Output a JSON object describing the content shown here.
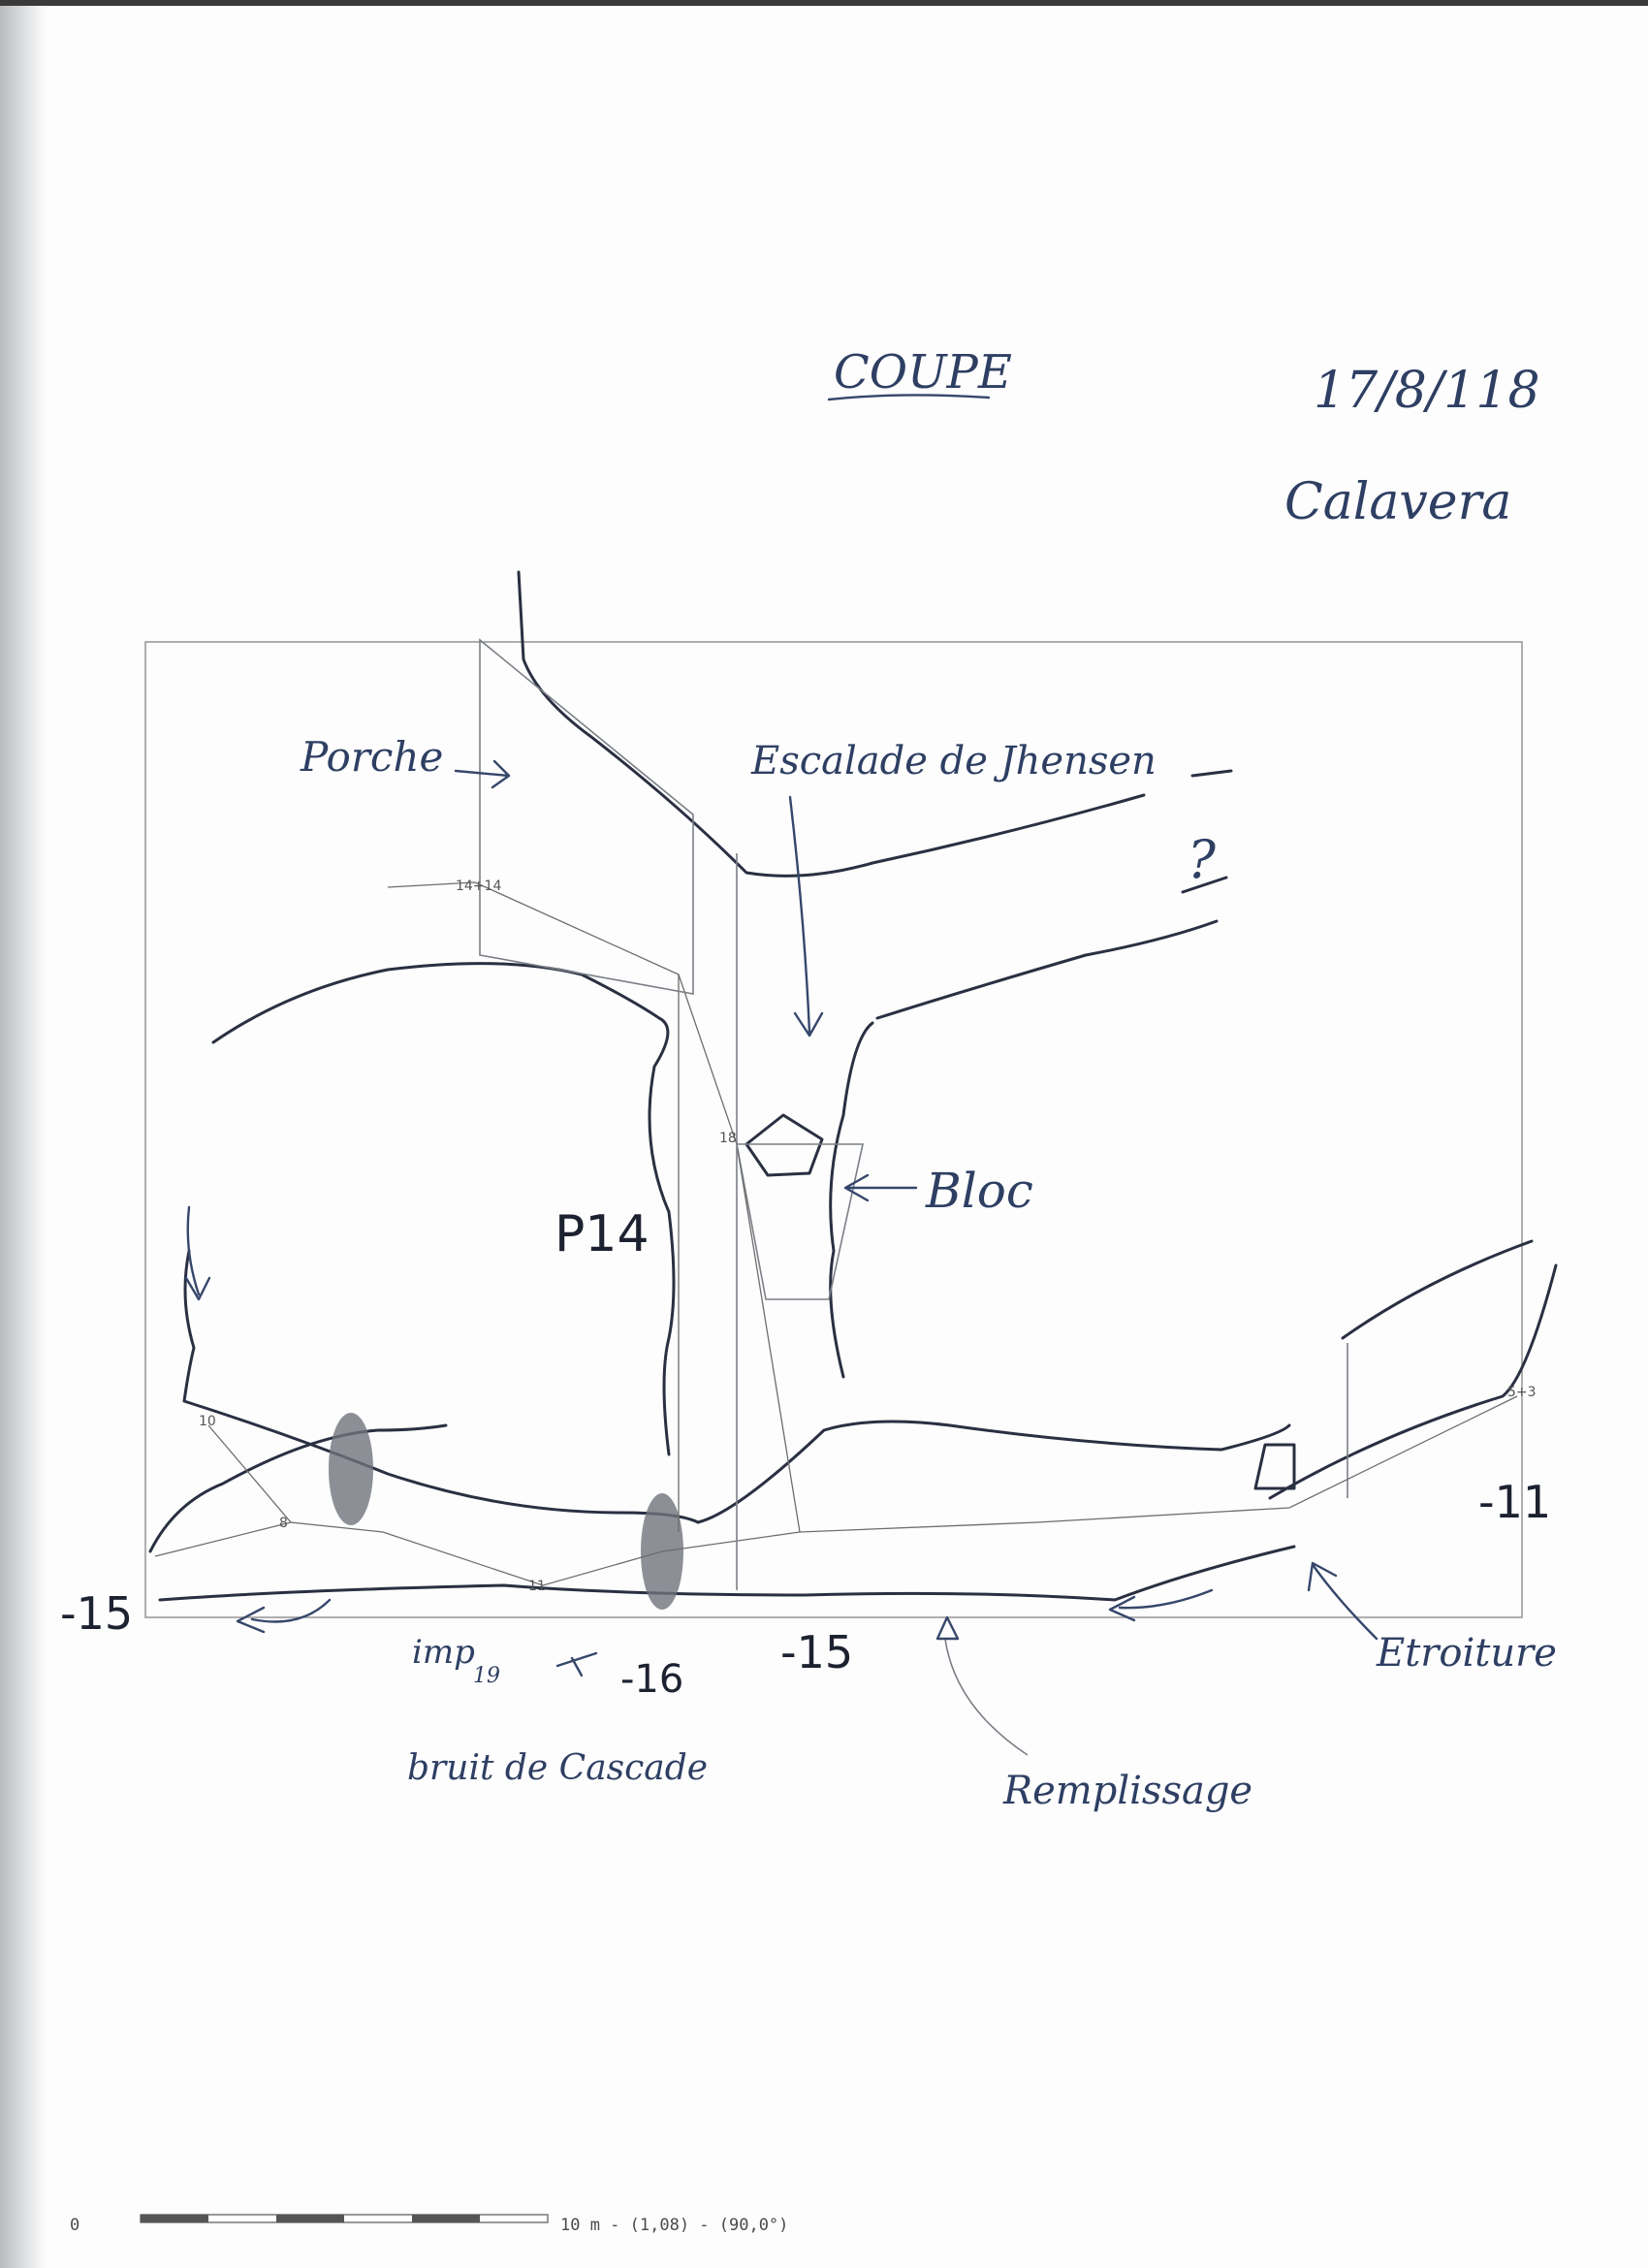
{
  "title": "COUPE",
  "date": "17/8/118",
  "cave_name": "Calavera",
  "labels": {
    "porche": "Porche",
    "escalade": "Escalade de Jhensen",
    "question": "?",
    "bloc": "Bloc",
    "p14": "P14",
    "depth_left": "-15",
    "depth_right": "-11",
    "depth_bottom_mid": "-15",
    "depth_bottom_left": "-16",
    "imp": "imp",
    "imp_sub": "19",
    "bruit": "bruit de Cascade",
    "remplissage": "Remplissage",
    "etroiture": "Etroiture"
  },
  "stations": {
    "top": "14+14",
    "left": "10",
    "right": "5+3",
    "block": "18",
    "mid1": "8",
    "mid2": "11"
  },
  "scale_bar": {
    "label": "10 m - (1,08) - (90,0°)",
    "origin": "0"
  },
  "colors": {
    "ink": "#1f2533",
    "annotation": "#2e3f63",
    "survey": "#6d6d6d"
  }
}
